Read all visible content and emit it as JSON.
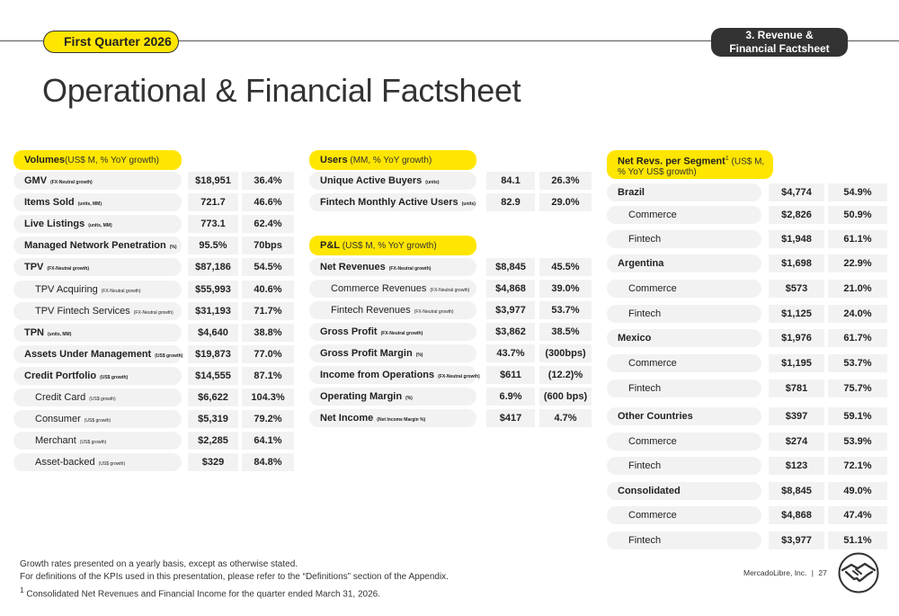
{
  "header": {
    "quarter": "First Quarter 2026",
    "section_line1": "3. Revenue &",
    "section_line2": "Financial Factsheet",
    "title": "Operational & Financial Factsheet"
  },
  "volumes": {
    "title": "Volumes",
    "subtitle": "(US$ M, % YoY growth)",
    "rows": [
      {
        "label": "GMV",
        "note": "(FX-Neutral growth)",
        "value": "$18,951",
        "growth": "36.4%"
      },
      {
        "label": "Items Sold",
        "note": "(units, MM)",
        "value": "721.7",
        "growth": "46.6%"
      },
      {
        "label": "Live Listings",
        "note": "(units, MM)",
        "value": "773.1",
        "growth": "62.4%"
      },
      {
        "label": "Managed Network Penetration",
        "note": "(%)",
        "value": "95.5%",
        "growth": "70bps"
      },
      {
        "label": "TPV",
        "note": "(FX-Neutral growth)",
        "value": "$87,186",
        "growth": "54.5%"
      },
      {
        "label": "TPV Acquiring",
        "note": "(FX-Neutral growth)",
        "value": "$55,993",
        "growth": "40.6%"
      },
      {
        "label": "TPV Fintech Services",
        "note": "(FX-Neutral growth)",
        "value": "$31,193",
        "growth": "71.7%"
      },
      {
        "label": "TPN",
        "note": "(units, MM)",
        "value": "$4,640",
        "growth": "38.8%"
      },
      {
        "label": "Assets Under Management",
        "note": "(US$ growth)",
        "value": "$19,873",
        "growth": "77.0%"
      },
      {
        "label": "Credit Portfolio",
        "note": "(US$ growth)",
        "value": "$14,555",
        "growth": "87.1%"
      },
      {
        "label": "Credit Card",
        "note": "(US$ growth)",
        "value": "$6,622",
        "growth": "104.3%"
      },
      {
        "label": "Consumer",
        "note": "(US$ growth)",
        "value": "$5,319",
        "growth": "79.2%"
      },
      {
        "label": "Merchant",
        "note": "(US$ growth)",
        "value": "$2,285",
        "growth": "64.1%"
      },
      {
        "label": "Asset-backed",
        "note": "(US$ growth)",
        "value": "$329",
        "growth": "84.8%"
      }
    ]
  },
  "users": {
    "title": "Users",
    "subtitle": "(MM, % YoY growth)",
    "rows": [
      {
        "label": "Unique Active Buyers",
        "note": "(units)",
        "value": "84.1",
        "growth": "26.3%"
      },
      {
        "label": "Fintech Monthly Active Users",
        "note": "(units)",
        "value": "82.9",
        "growth": "29.0%"
      }
    ]
  },
  "pnl": {
    "title": "P&L",
    "subtitle": "(US$ M, % YoY growth)",
    "rows": [
      {
        "label": "Net Revenues",
        "note": "(FX-Neutral growth)",
        "value": "$8,845",
        "growth": "45.5%"
      },
      {
        "label": "Commerce Revenues",
        "note": "(FX-Neutral growth)",
        "value": "$4,868",
        "growth": "39.0%"
      },
      {
        "label": "Fintech Revenues",
        "note": "(FX-Neutral growth)",
        "value": "$3,977",
        "growth": "53.7%"
      },
      {
        "label": "Gross Profit",
        "note": "(FX-Neutral growth)",
        "value": "$3,862",
        "growth": "38.5%"
      },
      {
        "label": "Gross Profit Margin",
        "note": "(%)",
        "value": "43.7%",
        "growth": "(300bps)"
      },
      {
        "label": "Income from Operations",
        "note": "(FX-Neutral growth)",
        "value": "$611",
        "growth": "(12.2)%"
      },
      {
        "label": "Operating Margin",
        "note": "(%)",
        "value": "6.9%",
        "growth": "(600 bps)"
      },
      {
        "label": "Net Income",
        "note": "(Net Income Margin %)",
        "value": "$417",
        "growth": "4.7%"
      }
    ]
  },
  "segments": {
    "title": "Net Revs. per Segment",
    "sup": "1",
    "subtitle1": "(US$ M,",
    "subtitle2": "% YoY US$ growth)",
    "rows": [
      {
        "label": "Brazil",
        "value": "$4,774",
        "growth": "54.9%"
      },
      {
        "label": "Commerce",
        "value": "$2,826",
        "growth": "50.9%"
      },
      {
        "label": "Fintech",
        "value": "$1,948",
        "growth": "61.1%"
      },
      {
        "label": "Argentina",
        "value": "$1,698",
        "growth": "22.9%"
      },
      {
        "label": "Commerce",
        "value": "$573",
        "growth": "21.0%"
      },
      {
        "label": "Fintech",
        "value": "$1,125",
        "growth": "24.0%"
      },
      {
        "label": "Mexico",
        "value": "$1,976",
        "growth": "61.7%"
      },
      {
        "label": "Commerce",
        "value": "$1,195",
        "growth": "53.7%"
      },
      {
        "label": "Fintech",
        "value": "$781",
        "growth": "75.7%"
      },
      {
        "label": "Other Countries",
        "value": "$397",
        "growth": "59.1%"
      },
      {
        "label": "Commerce",
        "value": "$274",
        "growth": "53.9%"
      },
      {
        "label": "Fintech",
        "value": "$123",
        "growth": "72.1%"
      },
      {
        "label": "Consolidated",
        "value": "$8,845",
        "growth": "49.0%"
      },
      {
        "label": "Commerce",
        "value": "$4,868",
        "growth": "47.4%"
      },
      {
        "label": "Fintech",
        "value": "$3,977",
        "growth": "51.1%"
      }
    ]
  },
  "footnotes": {
    "line1": "Growth rates presented on a yearly basis, except as otherwise stated.",
    "line2": "For definitions of the KPIs used in this presentation, please refer to the “Definitions” section of the Appendix.",
    "line3_sup": "1",
    "line3": " Consolidated Net Revenues and Financial Income for the quarter ended March 31, 2026."
  },
  "footer": {
    "brand": "MercadoLibre, Inc.",
    "separator": "|",
    "page": "27"
  },
  "colors": {
    "accent": "#ffe600",
    "dark": "#333333",
    "row_bg": "#f2f2f2"
  },
  "icons": {
    "logo": "handshake-logo-icon"
  }
}
